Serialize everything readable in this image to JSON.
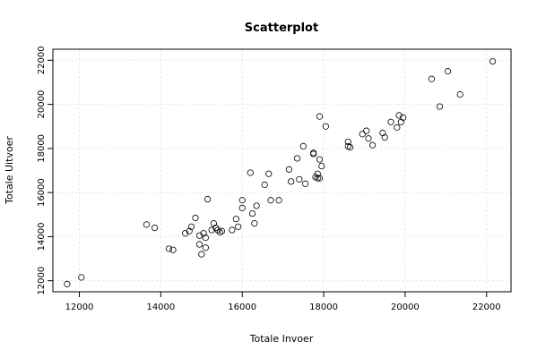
{
  "chart_data": {
    "type": "scatter",
    "title": "Scatterplot",
    "xlabel": "Totale Invoer",
    "ylabel": "Totale Uitvoer",
    "xlim": [
      11350,
      22600
    ],
    "ylim": [
      11500,
      22500
    ],
    "xticks": [
      12000,
      14000,
      16000,
      18000,
      20000,
      22000
    ],
    "yticks": [
      12000,
      14000,
      16000,
      18000,
      20000,
      22000
    ],
    "grid": true,
    "points": [
      [
        11700,
        11850
      ],
      [
        12050,
        12150
      ],
      [
        13650,
        14550
      ],
      [
        13850,
        14400
      ],
      [
        14200,
        13450
      ],
      [
        14300,
        13400
      ],
      [
        14600,
        14150
      ],
      [
        14700,
        14250
      ],
      [
        14750,
        14450
      ],
      [
        14850,
        14850
      ],
      [
        14950,
        13650
      ],
      [
        14950,
        14050
      ],
      [
        15000,
        13200
      ],
      [
        15050,
        14150
      ],
      [
        15100,
        13500
      ],
      [
        15100,
        13950
      ],
      [
        15150,
        15700
      ],
      [
        15250,
        14300
      ],
      [
        15300,
        14600
      ],
      [
        15350,
        14400
      ],
      [
        15400,
        14300
      ],
      [
        15450,
        14200
      ],
      [
        15500,
        14250
      ],
      [
        15750,
        14300
      ],
      [
        15850,
        14800
      ],
      [
        15900,
        14450
      ],
      [
        16000,
        15300
      ],
      [
        16000,
        15650
      ],
      [
        16200,
        16900
      ],
      [
        16250,
        15050
      ],
      [
        16300,
        14600
      ],
      [
        16350,
        15400
      ],
      [
        16550,
        16350
      ],
      [
        16650,
        16850
      ],
      [
        16700,
        15650
      ],
      [
        16900,
        15650
      ],
      [
        17150,
        17050
      ],
      [
        17200,
        16500
      ],
      [
        17350,
        17550
      ],
      [
        17400,
        16600
      ],
      [
        17500,
        18100
      ],
      [
        17550,
        16400
      ],
      [
        17750,
        17800
      ],
      [
        17750,
        17750
      ],
      [
        17800,
        16700
      ],
      [
        17850,
        16650
      ],
      [
        17850,
        16850
      ],
      [
        17900,
        16650
      ],
      [
        17900,
        17500
      ],
      [
        17900,
        19450
      ],
      [
        17950,
        17200
      ],
      [
        18050,
        19000
      ],
      [
        18600,
        18100
      ],
      [
        18600,
        18300
      ],
      [
        18650,
        18050
      ],
      [
        18950,
        18650
      ],
      [
        19050,
        18800
      ],
      [
        19100,
        18450
      ],
      [
        19200,
        18150
      ],
      [
        19450,
        18700
      ],
      [
        19500,
        18500
      ],
      [
        19650,
        19200
      ],
      [
        19800,
        18950
      ],
      [
        19850,
        19500
      ],
      [
        19900,
        19200
      ],
      [
        19950,
        19400
      ],
      [
        20650,
        21150
      ],
      [
        20850,
        19900
      ],
      [
        21050,
        21500
      ],
      [
        21350,
        20450
      ],
      [
        22150,
        21950
      ]
    ]
  }
}
